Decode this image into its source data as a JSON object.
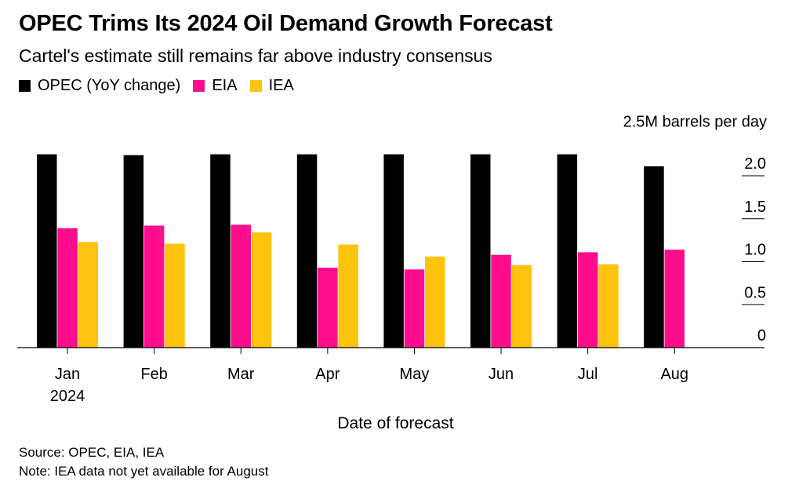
{
  "title": "OPEC Trims Its 2024 Oil Demand Growth Forecast",
  "subtitle": "Cartel's estimate still remains far above industry consensus",
  "legend": [
    {
      "label": "OPEC (YoY change)",
      "color": "#000000"
    },
    {
      "label": "EIA",
      "color": "#ff0d8c"
    },
    {
      "label": "IEA",
      "color": "#ffc20e"
    }
  ],
  "source": "Source: OPEC, EIA, IEA",
  "note": "Note: IEA data not yet available for August",
  "chart_data": {
    "type": "bar",
    "categories": [
      "Jan",
      "Feb",
      "Mar",
      "Apr",
      "May",
      "Jun",
      "Jul",
      "Aug"
    ],
    "category_sublabels": [
      "2024",
      "",
      "",
      "",
      "",
      "",
      "",
      ""
    ],
    "series": [
      {
        "name": "OPEC (YoY change)",
        "color": "#000000",
        "values": [
          2.25,
          2.24,
          2.25,
          2.25,
          2.25,
          2.25,
          2.25,
          2.11
        ]
      },
      {
        "name": "EIA",
        "color": "#ff0d8c",
        "values": [
          1.39,
          1.42,
          1.43,
          0.93,
          0.91,
          1.08,
          1.11,
          1.14
        ]
      },
      {
        "name": "IEA",
        "color": "#ffc20e",
        "values": [
          1.23,
          1.21,
          1.34,
          1.2,
          1.06,
          0.96,
          0.97,
          null
        ]
      }
    ],
    "xlabel": "Date of forecast",
    "ylabel": "2.5M barrels per day",
    "yticks": [
      0,
      0.5,
      1.0,
      1.5,
      2.0
    ],
    "ytick_labels": [
      "0",
      "0.5",
      "1.0",
      "1.5",
      "2.0"
    ],
    "ylim": [
      0,
      2.5
    ],
    "y_axis_position": "right",
    "grid": false
  }
}
